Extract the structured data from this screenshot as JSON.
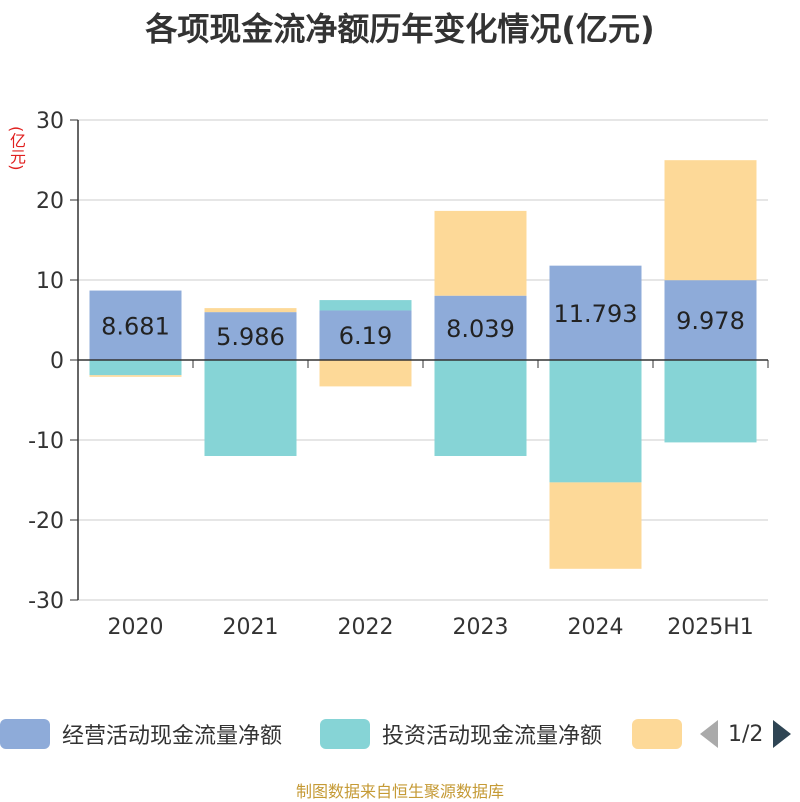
{
  "title": "各项现金流净额历年变化情况(亿元)",
  "unit": "(亿元)",
  "source": "制图数据来自恒生聚源数据库",
  "legend": {
    "items": [
      {
        "label": "经营活动现金流量净额",
        "color": "#8eabd9"
      },
      {
        "label": "投资活动现金流量净额",
        "color": "#86d4d6"
      },
      {
        "label": "",
        "color": "#fdd998"
      }
    ],
    "page": "1/2"
  },
  "chart_data": {
    "type": "bar",
    "stacked": true,
    "categories": [
      "2020",
      "2021",
      "2022",
      "2023",
      "2024",
      "2025H1"
    ],
    "ylim": [
      -30,
      30
    ],
    "yticks": [
      30,
      20,
      10,
      0,
      -10,
      -20,
      -30
    ],
    "series": [
      {
        "name": "经营活动现金流量净额",
        "color": "#8eabd9",
        "values": [
          8.681,
          5.986,
          6.19,
          8.039,
          11.793,
          9.978
        ],
        "labels": [
          "8.681",
          "5.986",
          "6.19",
          "8.039",
          "11.793",
          "9.978"
        ]
      },
      {
        "name": "投资活动现金流量净额",
        "color": "#86d4d6",
        "values": [
          -1.9,
          -12.0,
          1.3,
          -12.0,
          -15.3,
          -10.3
        ]
      },
      {
        "color": "#fdd998",
        "values": [
          -0.2,
          0.5,
          -3.3,
          10.6,
          -10.8,
          15.0
        ]
      }
    ]
  }
}
